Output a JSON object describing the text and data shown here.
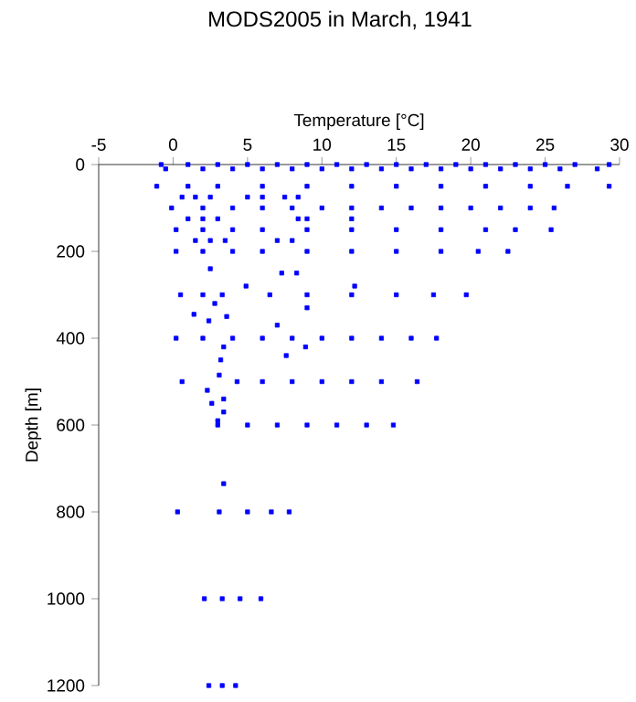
{
  "chart_data": {
    "type": "scatter",
    "title": "MODS2005 in March, 1941",
    "xlabel": "Temperature [°C]",
    "ylabel": "Depth [m]",
    "xlim": [
      -5,
      30
    ],
    "ylim": [
      1200,
      0
    ],
    "xticks": [
      -5,
      0,
      5,
      10,
      15,
      20,
      25,
      30
    ],
    "yticks": [
      0,
      200,
      400,
      600,
      800,
      1000,
      1200
    ],
    "marker": "square",
    "grid": false,
    "series": [
      {
        "color": "#0000ff",
        "x": [
          -0.8,
          1,
          3,
          5,
          7,
          9,
          11,
          13,
          15,
          17,
          19,
          21,
          23,
          25,
          27,
          29.3,
          -0.5,
          2,
          4,
          6,
          8,
          10,
          12,
          14,
          16,
          18,
          20,
          22,
          24,
          26,
          28.5,
          -1.1,
          1,
          3,
          6,
          9,
          12,
          15,
          18,
          21,
          24,
          26.5,
          29.3,
          0.6,
          1.5,
          2.5,
          5,
          6,
          7.5,
          8.4,
          -0.1,
          2,
          4,
          6,
          8,
          10,
          12,
          14,
          16,
          18,
          20,
          22,
          24,
          25.6,
          1,
          2,
          3,
          8.4,
          9,
          12,
          0.2,
          2,
          4,
          6,
          9,
          12,
          15,
          18,
          21,
          23,
          25.4,
          1.5,
          2.5,
          3.5,
          7,
          8,
          0.2,
          2,
          4,
          6,
          9,
          12,
          15,
          18,
          20.5,
          22.5,
          2.5,
          7.3,
          8.3,
          4.9,
          12.2,
          0.5,
          2,
          3.3,
          6.5,
          9,
          12,
          15,
          17.5,
          19.7,
          9.0,
          2.8,
          1.4,
          2.4,
          3.6,
          7.0,
          0.2,
          2,
          4,
          6,
          8,
          10,
          12,
          14,
          16,
          17.7,
          3.4,
          8.9,
          7.6,
          3.2,
          3.1,
          0.6,
          4.3,
          6,
          8,
          10,
          12,
          14,
          16.4,
          2.3,
          3.4,
          2.6,
          3.4,
          3.0,
          3.0,
          5,
          7,
          9,
          11,
          13,
          14.8,
          3.4,
          0.3,
          3.1,
          5,
          6.6,
          7.8,
          2.1,
          3.3,
          4.5,
          5.9,
          2.4,
          3.3,
          4.2
        ],
        "values": [
          0,
          0,
          0,
          0,
          0,
          0,
          0,
          0,
          0,
          0,
          0,
          0,
          0,
          0,
          0,
          0,
          10,
          10,
          10,
          10,
          10,
          10,
          10,
          10,
          10,
          10,
          10,
          10,
          10,
          10,
          10,
          50,
          50,
          50,
          50,
          50,
          50,
          50,
          50,
          50,
          50,
          50,
          50,
          75,
          75,
          75,
          75,
          75,
          75,
          75,
          100,
          100,
          100,
          100,
          100,
          100,
          100,
          100,
          100,
          100,
          100,
          100,
          100,
          100,
          125,
          125,
          125,
          125,
          125,
          125,
          150,
          150,
          150,
          150,
          150,
          150,
          150,
          150,
          150,
          150,
          150,
          175,
          175,
          175,
          175,
          175,
          200,
          200,
          200,
          200,
          200,
          200,
          200,
          200,
          200,
          200,
          240,
          250,
          250,
          280,
          280,
          300,
          300,
          300,
          300,
          300,
          300,
          300,
          300,
          300,
          330,
          320,
          345,
          360,
          350,
          370,
          400,
          400,
          400,
          400,
          400,
          400,
          400,
          400,
          400,
          400,
          420,
          420,
          440,
          450,
          485,
          500,
          500,
          500,
          500,
          500,
          500,
          500,
          500,
          520,
          540,
          550,
          570,
          590,
          600,
          600,
          600,
          600,
          600,
          600,
          600,
          735,
          800,
          800,
          800,
          800,
          800,
          1000,
          1000,
          1000,
          1000,
          1200,
          1200,
          1200
        ]
      }
    ]
  }
}
